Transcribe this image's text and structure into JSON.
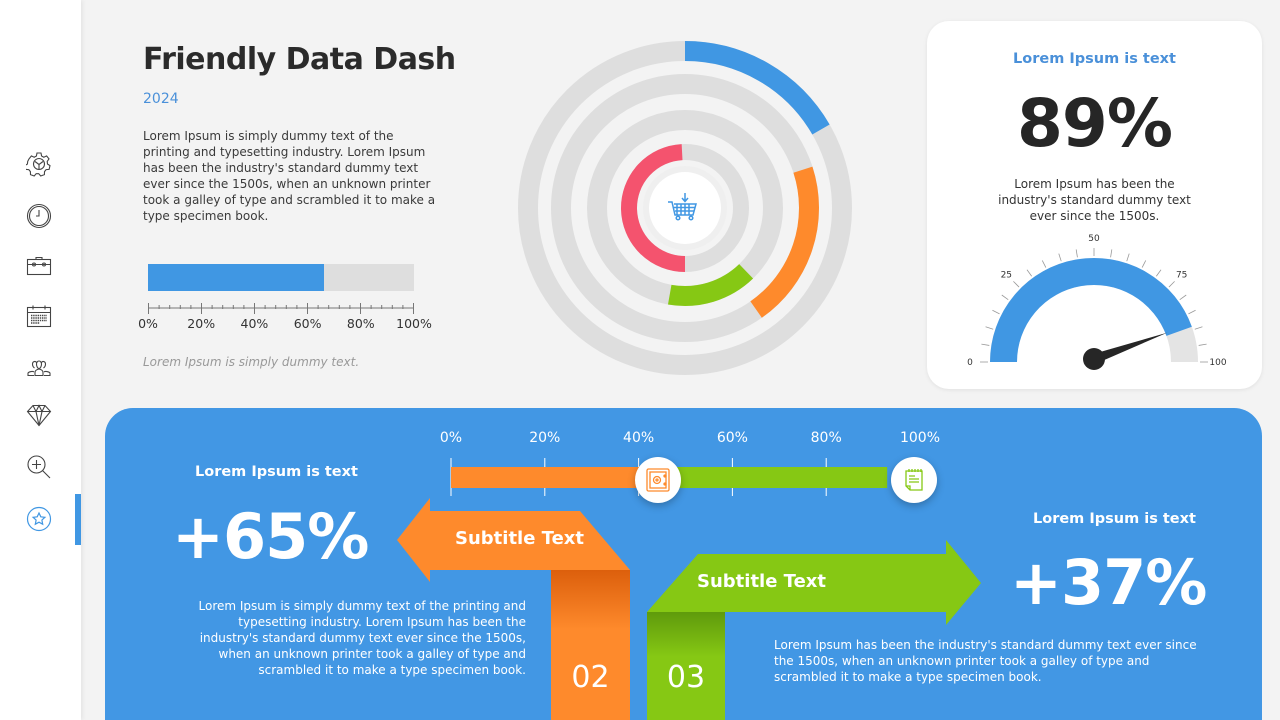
{
  "sidebar": {
    "items": [
      {
        "name": "settings",
        "icon": "gear-icon",
        "active": false
      },
      {
        "name": "clock",
        "icon": "clock-icon",
        "active": false
      },
      {
        "name": "toolbox",
        "icon": "toolbox-icon",
        "active": false
      },
      {
        "name": "calendar",
        "icon": "calendar-icon",
        "active": false
      },
      {
        "name": "users",
        "icon": "users-icon",
        "active": false
      },
      {
        "name": "diamond",
        "icon": "diamond-icon",
        "active": false
      },
      {
        "name": "zoom-in",
        "icon": "zoom-in-icon",
        "active": false
      },
      {
        "name": "favorites",
        "icon": "star-icon",
        "active": true
      }
    ],
    "active_color": "#4097e3"
  },
  "header": {
    "title": "Friendly Data Dash",
    "year": "2024",
    "intro": "Lorem Ipsum is simply dummy text of the printing and typesetting industry. Lorem Ipsum has been the industry's standard dummy text ever since the 1500s, when an unknown printer took a galley of type and scrambled it to make a type specimen book."
  },
  "progress": {
    "value_pct": 66,
    "axis": [
      "0%",
      "20%",
      "40%",
      "60%",
      "80%",
      "100%"
    ],
    "caption": "Lorem Ipsum is simply dummy text."
  },
  "radial": {
    "center_icon": "shopping-cart-download-icon",
    "rings": [
      {
        "color": "#4097e3",
        "start_deg": 0,
        "end_deg": 60
      },
      {
        "color": "#fe8a2c",
        "start_deg": 72,
        "end_deg": 145
      },
      {
        "color": "#86c814",
        "start_deg": 136,
        "end_deg": 190
      },
      {
        "color": "#f4536e",
        "start_deg": 180,
        "end_deg": 357
      }
    ]
  },
  "kpi_card": {
    "title": "Lorem Ipsum is text",
    "value": "89%",
    "text": "Lorem Ipsum has been the industry's standard dummy text ever since the 1500s.",
    "gauge": {
      "value": 89,
      "min": 0,
      "max": 100,
      "labels": [
        "0",
        "25",
        "50",
        "75",
        "100"
      ]
    }
  },
  "bottom_panel": {
    "timeline": {
      "labels": [
        "0%",
        "20%",
        "40%",
        "60%",
        "80%",
        "100%"
      ],
      "segments": [
        {
          "color": "#fe8a2c",
          "from": 0,
          "to": 44,
          "icon": "safe-icon"
        },
        {
          "color": "#86c814",
          "from": 44,
          "to": 93,
          "icon": "notepad-icon"
        }
      ]
    },
    "left": {
      "label": "Lorem Ipsum is text",
      "value": "+65%",
      "text": "Lorem Ipsum is simply dummy text of the printing and typesetting industry. Lorem Ipsum has been the industry's standard dummy text ever since the 1500s, when an unknown printer took a galley of type and scrambled it to make a type specimen book.",
      "subtitle": "Subtitle Text",
      "number": "02"
    },
    "right": {
      "label": "Lorem Ipsum is text",
      "value": "+37%",
      "text": "Lorem Ipsum has been the industry's standard dummy text ever since the 1500s, when an unknown printer took a galley of type and scrambled it to make a type specimen book.",
      "subtitle": "Subtitle Text",
      "number": "03"
    }
  },
  "colors": {
    "blue": "#4097e3",
    "orange": "#fe8a2c",
    "green": "#86c814",
    "red": "#f4536e",
    "track": "#dedede",
    "dark": "#262626"
  }
}
